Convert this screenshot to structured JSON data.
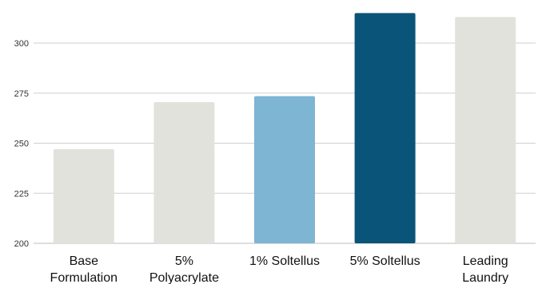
{
  "chart_data": {
    "type": "bar",
    "categories": [
      [
        "Base",
        "Formulation"
      ],
      [
        "5%",
        "Polyacrylate"
      ],
      [
        "1% Soltellus"
      ],
      [
        "5% Soltellus"
      ],
      [
        "Leading",
        "Laundry"
      ]
    ],
    "values": [
      247,
      270.5,
      273.5,
      315,
      313
    ],
    "bar_colors": [
      "#e2e2dc",
      "#e2e2dc",
      "#7db5d3",
      "#0b5479",
      "#e2e2dc"
    ],
    "ylim": [
      200,
      318
    ],
    "yticks": [
      200,
      225,
      250,
      275,
      300
    ],
    "grid": true,
    "title": "",
    "xlabel": "",
    "ylabel": ""
  }
}
